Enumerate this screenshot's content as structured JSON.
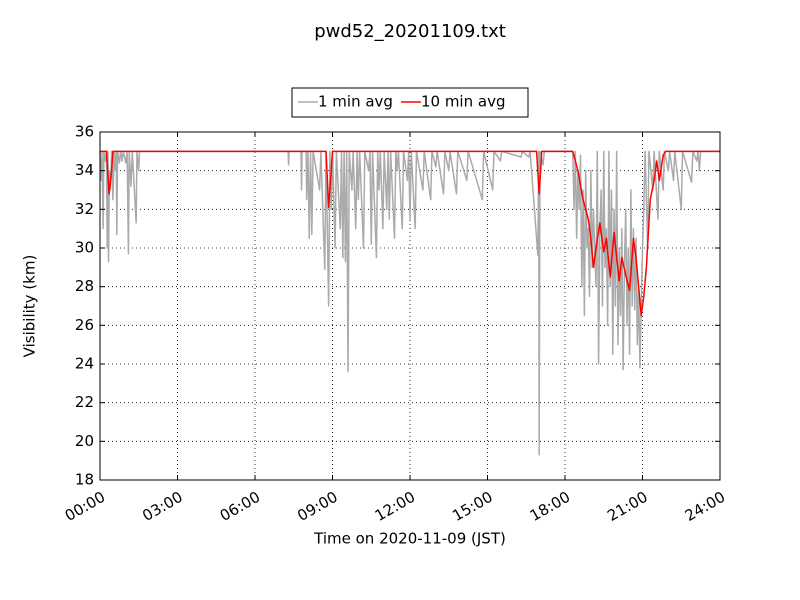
{
  "chart_data": {
    "type": "line",
    "title": "pwd52_20201109.txt",
    "xlabel": "Time on 2020-11-09 (JST)",
    "ylabel": "Visibility (km)",
    "xlim": [
      0,
      24
    ],
    "ylim": [
      18,
      36
    ],
    "xticks": [
      {
        "value": 0,
        "label": "00:00"
      },
      {
        "value": 3,
        "label": "03:00"
      },
      {
        "value": 6,
        "label": "06:00"
      },
      {
        "value": 9,
        "label": "09:00"
      },
      {
        "value": 12,
        "label": "12:00"
      },
      {
        "value": 15,
        "label": "15:00"
      },
      {
        "value": 18,
        "label": "18:00"
      },
      {
        "value": 21,
        "label": "21:00"
      },
      {
        "value": 24,
        "label": "24:00"
      }
    ],
    "yticks": [
      18,
      20,
      22,
      24,
      26,
      28,
      30,
      32,
      34,
      36
    ],
    "grid": true,
    "legend": "upper center",
    "series": [
      {
        "name": "1 min avg",
        "color": "#aaaaaa",
        "x": [
          0,
          0.05,
          0.08,
          0.12,
          0.15,
          0.2,
          0.25,
          0.28,
          0.31,
          0.33,
          0.36,
          0.4,
          0.45,
          0.5,
          0.55,
          0.6,
          0.63,
          0.65,
          0.68,
          0.75,
          0.8,
          0.85,
          0.9,
          1.0,
          1.05,
          1.1,
          1.13,
          1.2,
          1.25,
          1.4,
          1.43,
          1.5,
          1.53,
          7.28,
          7.3,
          7.32,
          7.78,
          7.8,
          7.82,
          7.98,
          8.0,
          8.05,
          8.1,
          8.15,
          8.2,
          8.25,
          8.5,
          8.55,
          8.7,
          8.75,
          8.85,
          8.9,
          8.95,
          9.0,
          9.1,
          9.15,
          9.3,
          9.35,
          9.4,
          9.45,
          9.5,
          9.55,
          9.6,
          9.65,
          9.75,
          9.8,
          9.9,
          9.95,
          10.0,
          10.05,
          10.2,
          10.25,
          10.4,
          10.45,
          10.5,
          10.55,
          10.7,
          10.75,
          10.8,
          10.85,
          10.95,
          11.0,
          11.1,
          11.15,
          11.2,
          11.25,
          11.4,
          11.45,
          11.5,
          11.55,
          11.7,
          11.75,
          11.9,
          11.95,
          12.0,
          12.05,
          12.2,
          12.25,
          12.5,
          12.55,
          12.8,
          12.85,
          13.0,
          13.05,
          13.3,
          13.35,
          13.5,
          13.55,
          13.8,
          13.85,
          14.2,
          14.25,
          14.8,
          14.85,
          15.2,
          15.25,
          15.5,
          15.55,
          16.3,
          16.35,
          16.6,
          16.65,
          16.95,
          16.98,
          17.0,
          17.03,
          17.15,
          17.2,
          18.3,
          18.35,
          18.4,
          18.45,
          18.5,
          18.55,
          18.6,
          18.65,
          18.7,
          18.75,
          18.8,
          18.85,
          18.9,
          18.95,
          19.0,
          19.05,
          19.1,
          19.15,
          19.2,
          19.25,
          19.3,
          19.35,
          19.4,
          19.45,
          19.5,
          19.55,
          19.6,
          19.65,
          19.7,
          19.75,
          19.8,
          19.85,
          19.9,
          19.95,
          20.0,
          20.05,
          20.1,
          20.15,
          20.2,
          20.25,
          20.3,
          20.35,
          20.4,
          20.45,
          20.5,
          20.55,
          20.6,
          20.65,
          20.7,
          20.75,
          20.8,
          20.85,
          20.9,
          20.95,
          21.0,
          21.05,
          21.1,
          21.2,
          21.25,
          21.4,
          21.45,
          21.6,
          21.65,
          21.8,
          21.85,
          22.0,
          22.05,
          22.2,
          22.25,
          22.5,
          22.55,
          22.9,
          22.95,
          23.1,
          23.15,
          23.2,
          23.25,
          24
        ],
        "values": [
          35,
          33.5,
          35,
          31,
          35,
          34.5,
          35,
          30,
          35,
          29.3,
          34,
          33,
          35,
          32.5,
          35,
          34,
          35,
          30.7,
          35,
          34.4,
          35,
          34.5,
          35,
          34.4,
          35,
          29.7,
          35,
          33.2,
          35,
          31.3,
          35,
          34,
          35,
          35,
          34.3,
          35,
          35,
          33,
          35,
          35,
          32.5,
          35,
          30.5,
          35,
          30.7,
          35,
          33,
          35,
          28.9,
          35,
          27,
          35,
          32,
          35,
          30,
          35,
          31,
          35,
          29.5,
          35,
          29.3,
          35,
          23.6,
          35,
          33,
          35,
          31,
          35,
          32.5,
          35,
          30,
          35,
          34,
          35,
          30.2,
          35,
          29.5,
          35,
          33,
          35,
          31,
          35,
          32,
          35,
          31.5,
          35,
          30.5,
          35,
          34,
          35,
          31,
          35,
          33.5,
          35,
          31.5,
          35,
          31,
          35,
          33,
          35,
          32.5,
          35,
          34.2,
          35,
          32.8,
          35,
          34,
          35,
          32.8,
          35,
          33.5,
          35,
          32.5,
          35,
          33,
          35,
          34.5,
          35,
          34.7,
          35,
          34.7,
          35,
          29.6,
          35,
          19.3,
          35,
          34.3,
          35,
          35,
          32,
          35,
          30.5,
          34,
          32,
          34.8,
          28,
          33,
          26.5,
          34,
          30,
          31,
          27.5,
          34,
          29,
          32,
          30,
          28,
          35,
          24,
          31,
          33,
          27,
          35,
          29,
          31,
          26,
          35,
          28,
          33,
          24.5,
          32,
          27,
          35,
          25,
          30,
          26.5,
          31,
          23.7,
          29,
          32,
          26,
          30,
          24.5,
          33,
          27,
          31,
          26.8,
          30.5,
          25,
          28,
          23.8,
          27,
          30,
          32,
          35,
          30,
          35,
          33,
          35,
          31.5,
          35,
          33,
          35,
          34,
          35,
          33.5,
          35,
          32,
          35,
          33.4,
          35,
          34.5,
          35,
          34,
          35,
          35
        ]
      },
      {
        "name": "10 min avg",
        "color": "#ff0000",
        "x": [
          0,
          0.25,
          0.35,
          0.45,
          0.5,
          8.75,
          8.85,
          8.95,
          9.0,
          16.9,
          17.0,
          17.08,
          17.1,
          18.3,
          18.5,
          18.7,
          18.9,
          19.0,
          19.1,
          19.2,
          19.35,
          19.5,
          19.6,
          19.75,
          19.9,
          20.0,
          20.1,
          20.2,
          20.35,
          20.5,
          20.65,
          20.75,
          20.85,
          20.95,
          21.05,
          21.15,
          21.3,
          21.45,
          21.55,
          21.65,
          21.8,
          21.9,
          24
        ],
        "values": [
          35,
          35,
          32.8,
          34,
          35,
          35,
          32.1,
          34,
          35,
          35,
          32.8,
          34.5,
          35,
          35,
          34,
          32.5,
          31.5,
          30.5,
          29,
          30,
          31.3,
          29.8,
          30.5,
          28.5,
          30.8,
          29.5,
          28.3,
          29.5,
          28.6,
          27.8,
          30.5,
          29.5,
          28,
          26.5,
          27.5,
          29,
          32.5,
          33.5,
          34.5,
          33.5,
          34.8,
          35,
          35
        ]
      }
    ]
  }
}
